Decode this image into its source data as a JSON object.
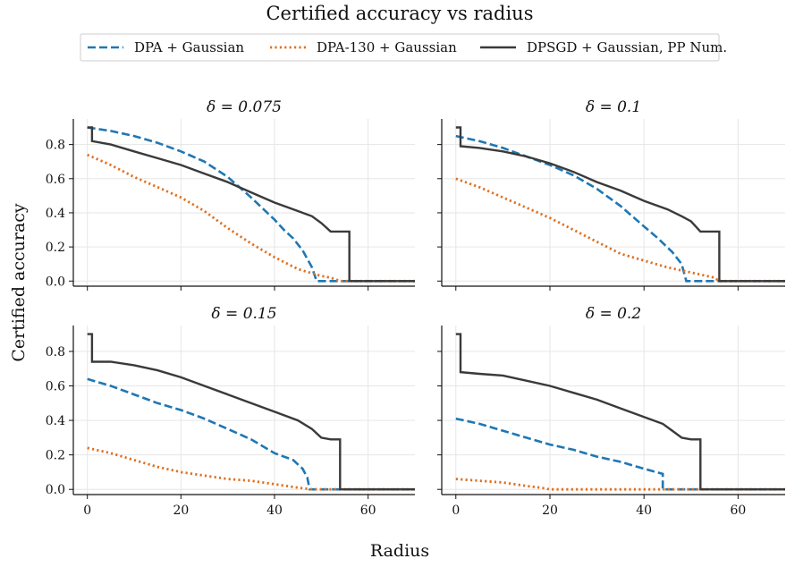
{
  "chart_data": {
    "type": "line",
    "title": "Certified accuracy vs radius",
    "xlabel": "Radius",
    "ylabel": "Certified accuracy",
    "xlim": [
      -3,
      70
    ],
    "ylim": [
      -0.03,
      0.95
    ],
    "xticks": [
      0,
      20,
      40,
      60
    ],
    "yticks": [
      0.0,
      0.2,
      0.4,
      0.6,
      0.8
    ],
    "xtick_labels": [
      "0",
      "20",
      "40",
      "60"
    ],
    "ytick_labels": [
      "0.0",
      "0.2",
      "0.4",
      "0.6",
      "0.8"
    ],
    "grid": true,
    "legend_position": "top-center",
    "series_styles": [
      {
        "name": "DPA + Gaussian",
        "color": "#1f77b4",
        "dash": "dashed"
      },
      {
        "name": "DPA-130 + Gaussian",
        "color": "#e07020",
        "dash": "dotted"
      },
      {
        "name": "DPSGD + Gaussian, PP Num.",
        "color": "#3a3a3a",
        "dash": "solid"
      }
    ],
    "panels": [
      {
        "title": "δ = 0.075",
        "series": [
          {
            "name": "DPA + Gaussian",
            "x": [
              0,
              5,
              10,
              15,
              20,
              25,
              30,
              35,
              40,
              42,
              44,
              46,
              48,
              49,
              70
            ],
            "y": [
              0.9,
              0.88,
              0.85,
              0.81,
              0.76,
              0.7,
              0.61,
              0.49,
              0.36,
              0.3,
              0.25,
              0.18,
              0.08,
              0.0,
              0.0
            ]
          },
          {
            "name": "DPA-130 + Gaussian",
            "x": [
              0,
              5,
              10,
              15,
              20,
              25,
              30,
              35,
              40,
              45,
              50,
              52,
              54,
              70
            ],
            "y": [
              0.74,
              0.68,
              0.61,
              0.55,
              0.49,
              0.41,
              0.31,
              0.22,
              0.14,
              0.07,
              0.03,
              0.02,
              0.0,
              0.0
            ]
          },
          {
            "name": "DPSGD + Gaussian, PP Num.",
            "x": [
              0,
              1,
              1,
              5,
              10,
              15,
              20,
              25,
              30,
              35,
              40,
              45,
              48,
              50,
              52,
              56,
              56,
              70
            ],
            "y": [
              0.9,
              0.9,
              0.82,
              0.8,
              0.76,
              0.72,
              0.68,
              0.63,
              0.58,
              0.52,
              0.46,
              0.41,
              0.38,
              0.34,
              0.29,
              0.29,
              0.0,
              0.0
            ]
          }
        ]
      },
      {
        "title": "δ = 0.1",
        "series": [
          {
            "name": "DPA + Gaussian",
            "x": [
              0,
              5,
              10,
              15,
              20,
              25,
              30,
              35,
              40,
              43,
              46,
              48,
              49,
              70
            ],
            "y": [
              0.85,
              0.82,
              0.78,
              0.73,
              0.68,
              0.62,
              0.54,
              0.44,
              0.32,
              0.25,
              0.17,
              0.1,
              0.0,
              0.0
            ]
          },
          {
            "name": "DPA-130 + Gaussian",
            "x": [
              0,
              5,
              10,
              15,
              20,
              25,
              30,
              35,
              40,
              45,
              50,
              55,
              56,
              70
            ],
            "y": [
              0.6,
              0.55,
              0.49,
              0.43,
              0.37,
              0.3,
              0.23,
              0.16,
              0.12,
              0.08,
              0.05,
              0.02,
              0.0,
              0.0
            ]
          },
          {
            "name": "DPSGD + Gaussian, PP Num.",
            "x": [
              0,
              1,
              1,
              5,
              10,
              15,
              20,
              25,
              30,
              35,
              40,
              45,
              48,
              50,
              52,
              56,
              56,
              70
            ],
            "y": [
              0.9,
              0.9,
              0.79,
              0.78,
              0.76,
              0.73,
              0.69,
              0.64,
              0.58,
              0.53,
              0.47,
              0.42,
              0.38,
              0.35,
              0.29,
              0.29,
              0.0,
              0.0
            ]
          }
        ]
      },
      {
        "title": "δ = 0.15",
        "series": [
          {
            "name": "DPA + Gaussian",
            "x": [
              0,
              5,
              10,
              15,
              20,
              25,
              30,
              35,
              40,
              44,
              46,
              47,
              47.5,
              70
            ],
            "y": [
              0.64,
              0.6,
              0.55,
              0.5,
              0.46,
              0.41,
              0.35,
              0.29,
              0.21,
              0.17,
              0.12,
              0.07,
              0.0,
              0.0
            ]
          },
          {
            "name": "DPA-130 + Gaussian",
            "x": [
              0,
              5,
              10,
              15,
              20,
              25,
              30,
              35,
              40,
              45,
              48,
              70
            ],
            "y": [
              0.24,
              0.21,
              0.17,
              0.13,
              0.1,
              0.08,
              0.06,
              0.05,
              0.03,
              0.01,
              0.0,
              0.0
            ]
          },
          {
            "name": "DPSGD + Gaussian, PP Num.",
            "x": [
              0,
              1,
              1,
              5,
              10,
              15,
              20,
              25,
              30,
              35,
              40,
              45,
              48,
              50,
              52,
              54,
              54,
              70
            ],
            "y": [
              0.9,
              0.9,
              0.74,
              0.74,
              0.72,
              0.69,
              0.65,
              0.6,
              0.55,
              0.5,
              0.45,
              0.4,
              0.35,
              0.3,
              0.29,
              0.29,
              0.0,
              0.0
            ]
          }
        ]
      },
      {
        "title": "δ = 0.2",
        "series": [
          {
            "name": "DPA + Gaussian",
            "x": [
              0,
              5,
              10,
              15,
              20,
              25,
              30,
              35,
              40,
              44,
              44,
              70
            ],
            "y": [
              0.41,
              0.38,
              0.34,
              0.3,
              0.26,
              0.23,
              0.19,
              0.16,
              0.12,
              0.09,
              0.0,
              0.0
            ]
          },
          {
            "name": "DPA-130 + Gaussian",
            "x": [
              0,
              5,
              10,
              15,
              18,
              20,
              25,
              70
            ],
            "y": [
              0.06,
              0.05,
              0.04,
              0.02,
              0.01,
              0.0,
              0.0,
              0.0
            ]
          },
          {
            "name": "DPSGD + Gaussian, PP Num.",
            "x": [
              0,
              1,
              1,
              5,
              10,
              15,
              20,
              25,
              30,
              35,
              40,
              44,
              46,
              48,
              50,
              52,
              52,
              70
            ],
            "y": [
              0.9,
              0.9,
              0.68,
              0.67,
              0.66,
              0.63,
              0.6,
              0.56,
              0.52,
              0.47,
              0.42,
              0.38,
              0.34,
              0.3,
              0.29,
              0.29,
              0.0,
              0.0
            ]
          }
        ]
      }
    ]
  }
}
